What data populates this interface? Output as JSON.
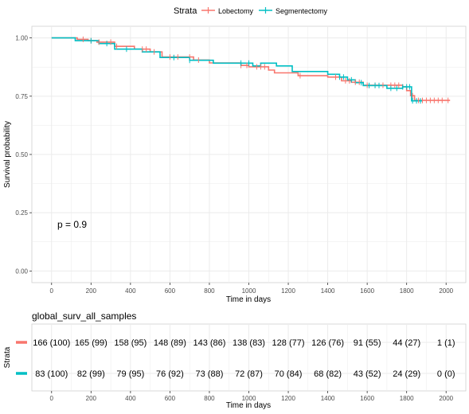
{
  "legend": {
    "title": "Strata",
    "items": [
      {
        "label": "Lobectomy",
        "color": "#F8766D"
      },
      {
        "label": "Segmentectomy",
        "color": "#00BFC4"
      }
    ]
  },
  "colors": {
    "lobectomy": "#F8766D",
    "segmentectomy": "#00BFC4",
    "panel_bg": "#FFFFFF",
    "grid": "#EBEBEB",
    "axis_text": "#4D4D4D"
  },
  "chart_data": [
    {
      "type": "line",
      "step": true,
      "xlabel": "Time in days",
      "ylabel": "Survival probability",
      "xlim": [
        -100,
        2100
      ],
      "ylim": [
        -0.05,
        1.05
      ],
      "xticks": [
        "0",
        "200",
        "400",
        "600",
        "800",
        "1000",
        "1200",
        "1400",
        "1600",
        "1800",
        "2000"
      ],
      "xtick_values": [
        0,
        200,
        400,
        600,
        800,
        1000,
        1200,
        1400,
        1600,
        1800,
        2000
      ],
      "yticks": [
        "0.00",
        "0.25",
        "0.50",
        "0.75",
        "1.00"
      ],
      "ytick_values": [
        0,
        0.25,
        0.5,
        0.75,
        1.0
      ],
      "grid": true,
      "legend_position": "top",
      "annotation": "p = 0.9",
      "series": [
        {
          "name": "Lobectomy",
          "color": "#F8766D",
          "steps": [
            [
              0,
              1.0
            ],
            [
              130,
              0.994
            ],
            [
              185,
              0.988
            ],
            [
              230,
              0.982
            ],
            [
              320,
              0.964
            ],
            [
              420,
              0.952
            ],
            [
              500,
              0.94
            ],
            [
              560,
              0.918
            ],
            [
              720,
              0.905
            ],
            [
              800,
              0.893
            ],
            [
              960,
              0.882
            ],
            [
              1000,
              0.876
            ],
            [
              1100,
              0.862
            ],
            [
              1130,
              0.85
            ],
            [
              1250,
              0.838
            ],
            [
              1400,
              0.832
            ],
            [
              1470,
              0.816
            ],
            [
              1520,
              0.81
            ],
            [
              1580,
              0.797
            ],
            [
              1780,
              0.79
            ],
            [
              1800,
              0.774
            ],
            [
              1820,
              0.752
            ],
            [
              1840,
              0.732
            ],
            [
              2020,
              0.732
            ]
          ],
          "censors": [
            [
              160,
              0.994
            ],
            [
              200,
              0.988
            ],
            [
              240,
              0.982
            ],
            [
              300,
              0.982
            ],
            [
              330,
              0.964
            ],
            [
              460,
              0.952
            ],
            [
              480,
              0.952
            ],
            [
              520,
              0.94
            ],
            [
              600,
              0.918
            ],
            [
              640,
              0.918
            ],
            [
              700,
              0.918
            ],
            [
              745,
              0.905
            ],
            [
              960,
              0.882
            ],
            [
              990,
              0.882
            ],
            [
              1040,
              0.876
            ],
            [
              1060,
              0.876
            ],
            [
              1080,
              0.876
            ],
            [
              1260,
              0.838
            ],
            [
              1440,
              0.832
            ],
            [
              1490,
              0.816
            ],
            [
              1510,
              0.816
            ],
            [
              1540,
              0.81
            ],
            [
              1560,
              0.81
            ],
            [
              1600,
              0.797
            ],
            [
              1640,
              0.797
            ],
            [
              1680,
              0.797
            ],
            [
              1720,
              0.797
            ],
            [
              1740,
              0.797
            ],
            [
              1760,
              0.797
            ],
            [
              1830,
              0.752
            ],
            [
              1860,
              0.732
            ],
            [
              1880,
              0.732
            ],
            [
              1900,
              0.732
            ],
            [
              1920,
              0.732
            ],
            [
              1940,
              0.732
            ],
            [
              1960,
              0.732
            ],
            [
              1980,
              0.732
            ],
            [
              2010,
              0.732
            ]
          ]
        },
        {
          "name": "Segmentectomy",
          "color": "#00BFC4",
          "steps": [
            [
              0,
              1.0
            ],
            [
              120,
              0.988
            ],
            [
              240,
              0.976
            ],
            [
              320,
              0.952
            ],
            [
              460,
              0.94
            ],
            [
              550,
              0.916
            ],
            [
              700,
              0.904
            ],
            [
              820,
              0.892
            ],
            [
              1020,
              0.88
            ],
            [
              1060,
              0.892
            ],
            [
              1140,
              0.88
            ],
            [
              1220,
              0.856
            ],
            [
              1400,
              0.844
            ],
            [
              1460,
              0.832
            ],
            [
              1500,
              0.82
            ],
            [
              1540,
              0.808
            ],
            [
              1580,
              0.796
            ],
            [
              1700,
              0.784
            ],
            [
              1780,
              0.79
            ],
            [
              1825,
              0.73
            ],
            [
              1880,
              0.73
            ]
          ],
          "censors": [
            [
              200,
              0.988
            ],
            [
              280,
              0.976
            ],
            [
              380,
              0.952
            ],
            [
              620,
              0.916
            ],
            [
              700,
              0.904
            ],
            [
              960,
              0.892
            ],
            [
              1000,
              0.892
            ],
            [
              1460,
              0.832
            ],
            [
              1480,
              0.832
            ],
            [
              1520,
              0.82
            ],
            [
              1570,
              0.808
            ],
            [
              1610,
              0.796
            ],
            [
              1640,
              0.796
            ],
            [
              1660,
              0.796
            ],
            [
              1720,
              0.784
            ],
            [
              1750,
              0.784
            ],
            [
              1780,
              0.79
            ],
            [
              1800,
              0.79
            ],
            [
              1815,
              0.79
            ],
            [
              1830,
              0.73
            ],
            [
              1850,
              0.73
            ],
            [
              1870,
              0.73
            ]
          ]
        }
      ]
    },
    {
      "type": "table",
      "title": "global_surv_all_samples",
      "xlabel": "Time in days",
      "ylabel": "Strata",
      "xticks": [
        "0",
        "200",
        "400",
        "600",
        "800",
        "1000",
        "1200",
        "1400",
        "1600",
        "1800",
        "2000"
      ],
      "xtick_values": [
        0,
        200,
        400,
        600,
        800,
        1000,
        1200,
        1400,
        1600,
        1800,
        2000
      ],
      "rows": [
        {
          "color": "#F8766D",
          "cells": [
            "166 (100)",
            "165 (99)",
            "158 (95)",
            "148 (89)",
            "143 (86)",
            "138 (83)",
            "128 (77)",
            "126 (76)",
            "91 (55)",
            "44 (27)",
            "1 (1)"
          ]
        },
        {
          "color": "#00BFC4",
          "cells": [
            "83 (100)",
            "82 (99)",
            "79 (95)",
            "76 (92)",
            "73 (88)",
            "72 (87)",
            "70 (84)",
            "68 (82)",
            "43 (52)",
            "24 (29)",
            "0 (0)"
          ]
        }
      ]
    }
  ]
}
